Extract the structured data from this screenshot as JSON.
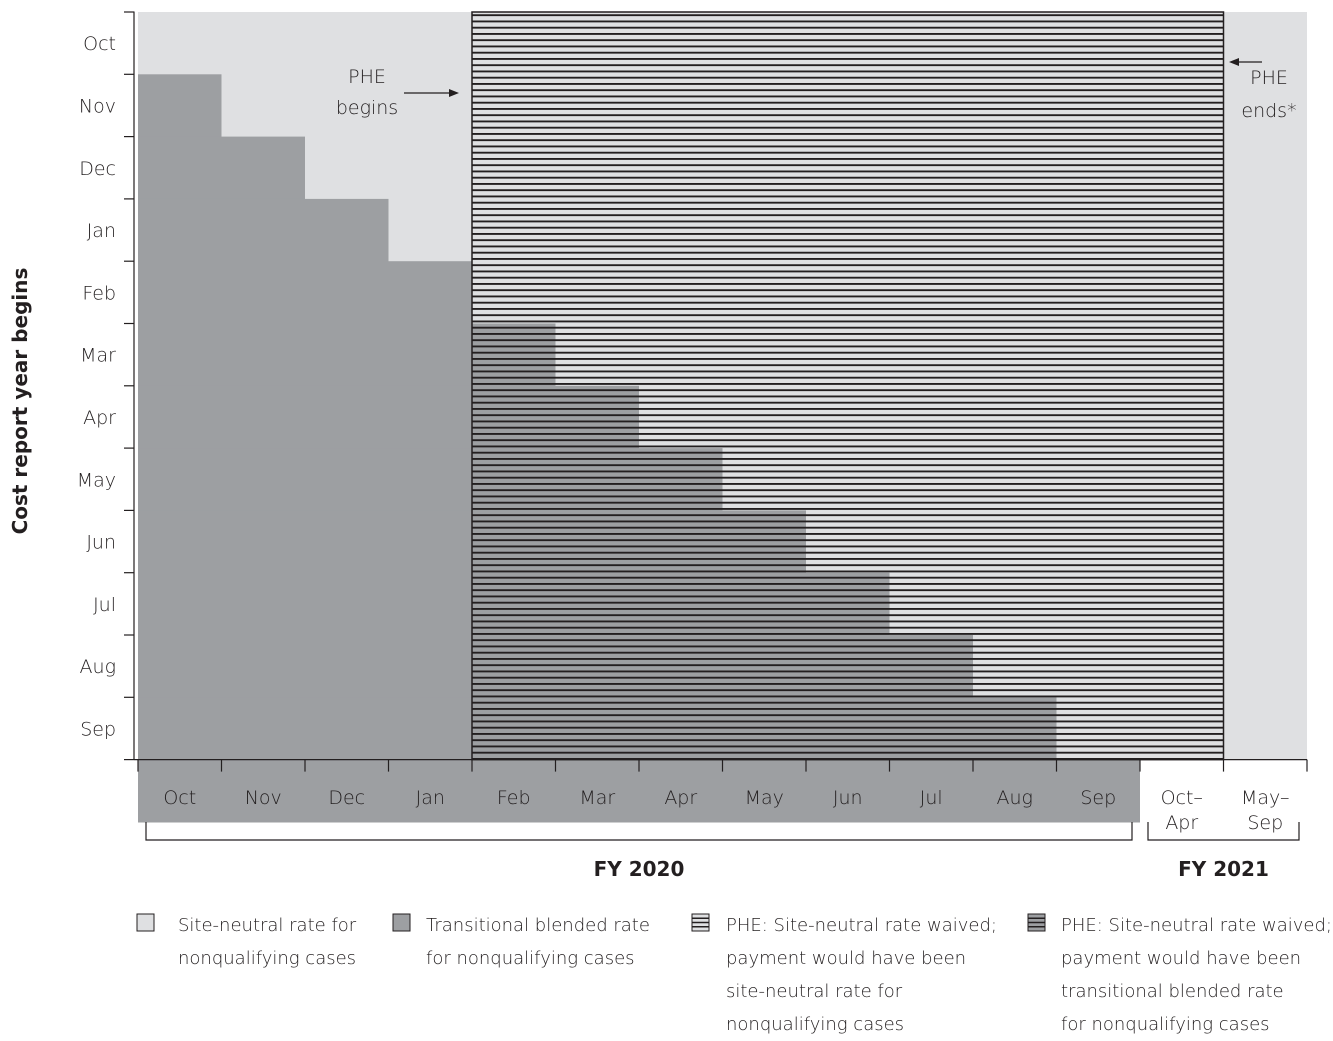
{
  "chart_data": {
    "type": "area",
    "ylabel": "Cost report year begins",
    "y_categories": [
      "Oct",
      "Nov",
      "Dec",
      "Jan",
      "Feb",
      "Mar",
      "Apr",
      "May",
      "Jun",
      "Jul",
      "Aug",
      "Sep"
    ],
    "x_categories": [
      "Oct",
      "Nov",
      "Dec",
      "Jan",
      "Feb",
      "Mar",
      "Apr",
      "May",
      "Jun",
      "Jul",
      "Aug",
      "Sep",
      "Oct–Apr",
      "May–Sep"
    ],
    "x_groups": [
      {
        "label": "FY 2020",
        "from": "Oct",
        "to": "Sep"
      },
      {
        "label": "FY 2021",
        "from": "Oct–Apr",
        "to": "May–Sep"
      }
    ],
    "transitional_blended_rate_months": [
      {
        "cost_report_begins": "Oct",
        "months": 1
      },
      {
        "cost_report_begins": "Nov",
        "months": 2
      },
      {
        "cost_report_begins": "Dec",
        "months": 3
      },
      {
        "cost_report_begins": "Jan",
        "months": 4
      },
      {
        "cost_report_begins": "Feb",
        "months": 5
      },
      {
        "cost_report_begins": "Mar",
        "months": 6
      },
      {
        "cost_report_begins": "Apr",
        "months": 7
      },
      {
        "cost_report_begins": "May",
        "months": 8
      },
      {
        "cost_report_begins": "Jun",
        "months": 9
      },
      {
        "cost_report_begins": "Jul",
        "months": 10
      },
      {
        "cost_report_begins": "Aug",
        "months": 11
      },
      {
        "cost_report_begins": "Sep",
        "months": 12
      }
    ],
    "phe_period": {
      "start": "Feb",
      "end": "Oct–Apr"
    },
    "annotations": [
      {
        "text_lines": [
          "PHE",
          "begins"
        ]
      },
      {
        "text_lines": [
          "PHE",
          "ends*"
        ]
      }
    ],
    "legend": [
      {
        "key": "site_neutral",
        "color": "#dfe0e2",
        "lines": [
          "Site-neutral rate for",
          "nonqualifying cases"
        ]
      },
      {
        "key": "blended",
        "color": "#9d9fa2",
        "lines": [
          "Transitional blended rate",
          "for nonqualifying cases"
        ]
      },
      {
        "key": "phe_site_neutral",
        "color": "#dfe0e2",
        "hatched": true,
        "lines": [
          "PHE: Site-neutral rate waived;",
          "payment would have been",
          "site-neutral rate for",
          "nonqualifying cases"
        ]
      },
      {
        "key": "phe_blended",
        "color": "#9d9fa2",
        "hatched": true,
        "lines": [
          "PHE: Site-neutral rate waived;",
          "payment would have been",
          "transitional blended rate",
          "for nonqualifying cases"
        ]
      }
    ]
  }
}
